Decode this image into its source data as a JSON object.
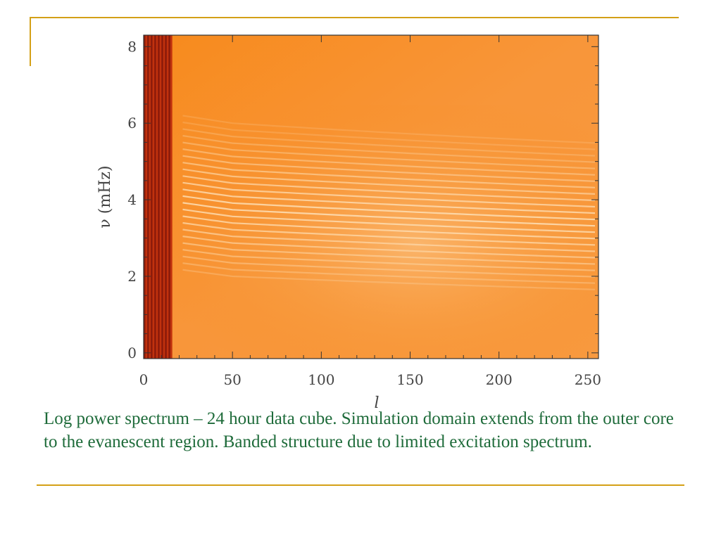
{
  "chart_data": {
    "type": "heatmap",
    "title": "",
    "xlabel": "l",
    "ylabel": "ν (mHz)",
    "xlim": [
      0,
      256
    ],
    "ylim": [
      -0.15,
      8.3
    ],
    "xticks": [
      0,
      50,
      100,
      150,
      200,
      250
    ],
    "yticks": [
      0,
      2,
      4,
      6,
      8
    ],
    "grid": false,
    "colormap": "orange-heat",
    "colors": {
      "dark": "#8b1a0a",
      "mid": "#f07a0a",
      "background": "#f68c1e",
      "ridge": "#fde0b8"
    },
    "ridges": {
      "description_count": 24,
      "frequency_at_l50_mHz": [
        2.0,
        6.0
      ],
      "frequency_at_l250_mHz": [
        1.6,
        5.4
      ]
    },
    "dark_band_lrange": [
      0,
      16
    ]
  },
  "caption": "Log power spectrum – 24 hour data cube. Simulation domain extends from the outer core to the evanescent region. Banded structure due to limited excitation spectrum."
}
